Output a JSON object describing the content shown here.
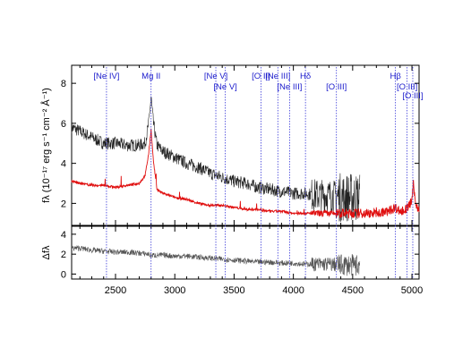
{
  "chart_data": [
    {
      "type": "line",
      "panel": "top",
      "ylabel": "fλ (10⁻¹⁷ erg s⁻¹ cm⁻² Å⁻¹)",
      "xlim": [
        2130,
        5060
      ],
      "ylim": [
        0.9,
        8.9
      ],
      "yticks": [
        "2",
        "4",
        "6",
        "8"
      ],
      "ytick_values": [
        2,
        4,
        6,
        8
      ],
      "series": [
        {
          "color": "#222222",
          "x": [
            2130,
            2200,
            2300,
            2400,
            2500,
            2600,
            2700,
            2750,
            2780,
            2800,
            2820,
            2850,
            2900,
            3000,
            3100,
            3200,
            3300,
            3400,
            3500,
            3600,
            3700,
            3800,
            3900,
            4000,
            4100,
            4200,
            4300,
            4400,
            4500,
            4560
          ],
          "y": [
            5.8,
            5.6,
            5.3,
            5.0,
            5.0,
            4.9,
            4.9,
            5.0,
            6.0,
            7.3,
            6.0,
            4.9,
            4.6,
            4.3,
            4.0,
            3.8,
            3.5,
            3.3,
            3.1,
            3.0,
            2.8,
            2.7,
            2.6,
            2.5,
            2.5,
            2.4,
            2.4,
            2.3,
            2.3,
            2.3
          ]
        },
        {
          "color": "#e01010",
          "x": [
            2130,
            2200,
            2300,
            2400,
            2500,
            2600,
            2700,
            2750,
            2780,
            2800,
            2820,
            2850,
            2900,
            3000,
            3100,
            3200,
            3300,
            3400,
            3500,
            3600,
            3700,
            3800,
            3900,
            4000,
            4100,
            4200,
            4300,
            4400,
            4500,
            4600,
            4700,
            4800,
            4860,
            4900,
            4950,
            5000,
            5010,
            5030,
            5060
          ],
          "y": [
            3.1,
            3.0,
            2.9,
            2.9,
            2.8,
            2.9,
            3.0,
            3.4,
            4.5,
            5.7,
            4.1,
            2.7,
            2.5,
            2.3,
            2.2,
            2.0,
            1.9,
            1.9,
            1.8,
            1.7,
            1.7,
            1.6,
            1.6,
            1.5,
            1.5,
            1.5,
            1.5,
            1.5,
            1.5,
            1.5,
            1.5,
            1.6,
            1.8,
            1.6,
            1.7,
            2.1,
            2.9,
            2.0,
            1.7
          ]
        }
      ]
    },
    {
      "type": "line",
      "panel": "bottom",
      "ylabel": "Δfλ",
      "xlim": [
        2130,
        5060
      ],
      "ylim": [
        -0.5,
        4.8
      ],
      "yticks": [
        "0",
        "2",
        "4"
      ],
      "ytick_values": [
        0,
        2,
        4
      ],
      "xticks": [
        "2500",
        "3000",
        "3500",
        "4000",
        "4500",
        "5000"
      ],
      "xtick_values": [
        2500,
        3000,
        3500,
        4000,
        4500,
        5000
      ],
      "series": [
        {
          "color": "#555555",
          "x": [
            2130,
            2200,
            2300,
            2400,
            2500,
            2600,
            2700,
            2780,
            2800,
            2820,
            2900,
            3000,
            3100,
            3200,
            3300,
            3400,
            3500,
            3600,
            3700,
            3800,
            3900,
            4000,
            4100,
            4200,
            4300,
            4400,
            4500,
            4560
          ],
          "y": [
            2.6,
            2.6,
            2.4,
            2.3,
            2.2,
            2.2,
            2.1,
            2.0,
            1.8,
            1.9,
            1.9,
            1.8,
            1.8,
            1.7,
            1.6,
            1.5,
            1.4,
            1.3,
            1.2,
            1.2,
            1.1,
            1.1,
            1.0,
            1.0,
            1.0,
            0.9,
            0.9,
            0.9
          ]
        }
      ]
    }
  ],
  "emission_lines": [
    {
      "label": "[Ne IV]",
      "x": 2424,
      "row": 0
    },
    {
      "label": "Mg II",
      "x": 2800,
      "row": 0
    },
    {
      "label": "[Ne V]",
      "x": 3346,
      "row": 0
    },
    {
      "label": "[Ne V]",
      "x": 3426,
      "row": 1
    },
    {
      "label": "[O II]",
      "x": 3727,
      "row": 0
    },
    {
      "label": "[Ne III]",
      "x": 3869,
      "row": 0
    },
    {
      "label": "[Ne III]",
      "x": 3968,
      "row": 1
    },
    {
      "label": "Hδ",
      "x": 4102,
      "row": 0
    },
    {
      "label": "[O III]",
      "x": 4363,
      "row": 1
    },
    {
      "label": "Hβ",
      "x": 4861,
      "row": 0
    },
    {
      "label": "[O III]",
      "x": 4959,
      "row": 1
    },
    {
      "label": "[O III]",
      "x": 5007,
      "row": 2
    }
  ]
}
